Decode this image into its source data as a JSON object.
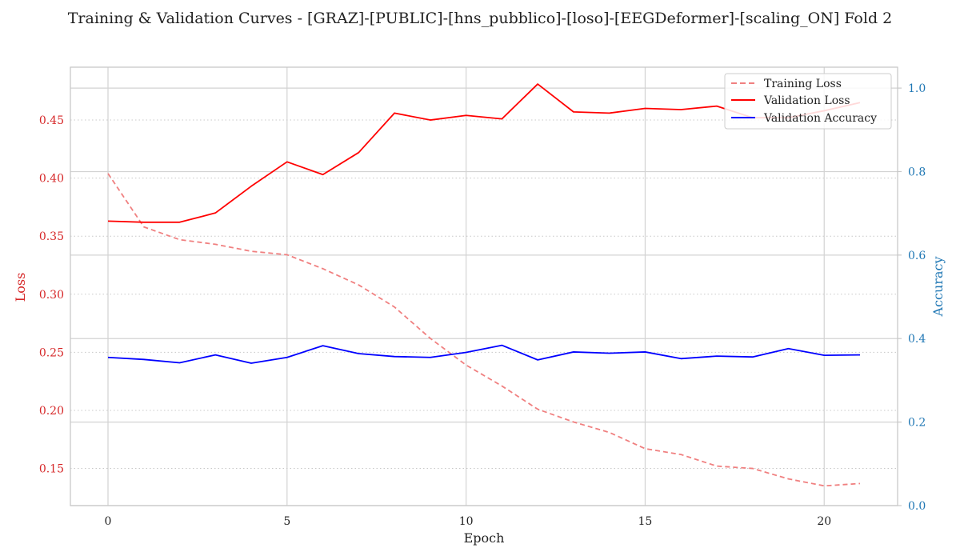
{
  "chart_data": {
    "type": "line",
    "title": "Training & Validation Curves - [GRAZ]-[PUBLIC]-[hns_pubblico]-[loso]-[EEGDeformer]-[scaling_ON] Fold 2",
    "xlabel": "Epoch",
    "ylabel_left": "Loss",
    "ylabel_right": "Accuracy",
    "x": [
      0,
      1,
      2,
      3,
      4,
      5,
      6,
      7,
      8,
      9,
      10,
      11,
      12,
      13,
      14,
      15,
      16,
      17,
      18,
      19,
      20,
      21
    ],
    "xlim": [
      -1.05,
      22.05
    ],
    "xticks": [
      "0",
      "5",
      "10",
      "15",
      "20"
    ],
    "ylim_left": [
      0.118,
      0.4955
    ],
    "yticks_left": [
      "0.15",
      "0.20",
      "0.25",
      "0.30",
      "0.35",
      "0.40",
      "0.45"
    ],
    "ylim_right": [
      0.0,
      1.05
    ],
    "yticks_right": [
      "0.0",
      "0.2",
      "0.4",
      "0.6",
      "0.8",
      "1.0"
    ],
    "grid": true,
    "legend_position": "top-right",
    "colors": {
      "left_axis": "#d62728",
      "right_axis": "#1f77b4",
      "training_loss": "#f08080",
      "validation_loss": "#ff0000",
      "validation_accuracy": "#0000ff"
    },
    "series": [
      {
        "name": "Training Loss",
        "axis": "left",
        "style": "dashed",
        "values": [
          0.404,
          0.358,
          0.347,
          0.343,
          0.337,
          0.334,
          0.322,
          0.308,
          0.289,
          0.262,
          0.239,
          0.221,
          0.201,
          0.19,
          0.181,
          0.167,
          0.162,
          0.152,
          0.15,
          0.141,
          0.135,
          0.137
        ]
      },
      {
        "name": "Validation Loss",
        "axis": "left",
        "style": "solid",
        "values": [
          0.363,
          0.362,
          0.362,
          0.37,
          0.393,
          0.414,
          0.403,
          0.422,
          0.456,
          0.45,
          0.454,
          0.451,
          0.481,
          0.457,
          0.456,
          0.46,
          0.459,
          0.462,
          0.452,
          0.452,
          0.458,
          0.465
        ]
      },
      {
        "name": "Validation Accuracy",
        "axis": "right",
        "style": "solid",
        "values": [
          0.355,
          0.35,
          0.342,
          0.361,
          0.341,
          0.355,
          0.383,
          0.364,
          0.357,
          0.355,
          0.367,
          0.384,
          0.349,
          0.368,
          0.365,
          0.368,
          0.352,
          0.358,
          0.356,
          0.376,
          0.36,
          0.361
        ]
      }
    ]
  }
}
